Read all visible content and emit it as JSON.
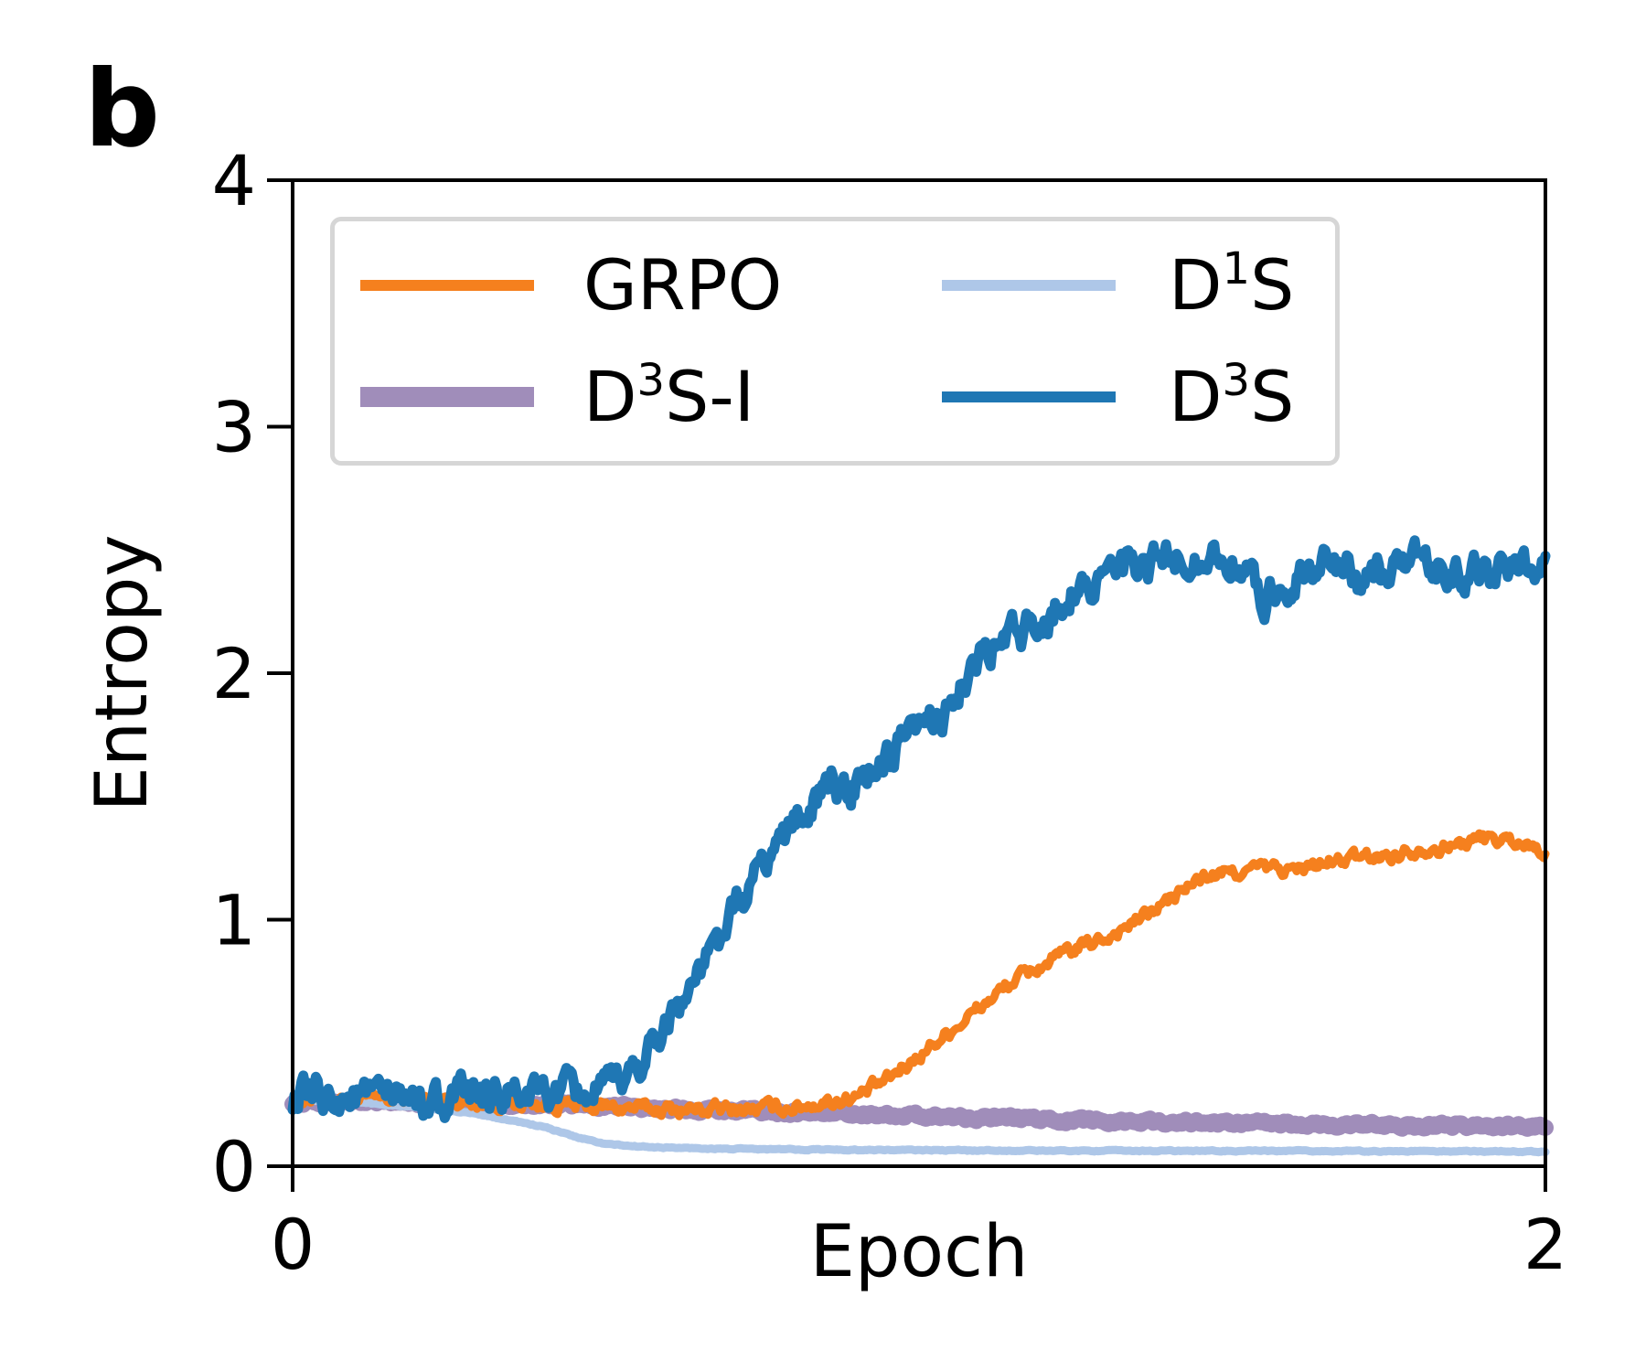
{
  "panel_label": "b",
  "chart_data": {
    "type": "line",
    "xlabel": "Epoch",
    "ylabel": "Entropy",
    "xlim": [
      0,
      2
    ],
    "ylim": [
      0,
      4
    ],
    "xticks": [
      "0",
      "2"
    ],
    "yticks": [
      "0",
      "1",
      "2",
      "3",
      "4"
    ],
    "legend_position": "upper-left, 2 columns",
    "series": [
      {
        "name": "GRPO",
        "label_base": "GRPO",
        "label_sup": "",
        "label_tail": "",
        "color": "#f5801e",
        "noise": 0.022,
        "x": [
          0,
          0.1,
          0.2,
          0.3,
          0.4,
          0.5,
          0.6,
          0.7,
          0.8,
          0.9,
          0.95,
          1.0,
          1.05,
          1.1,
          1.15,
          1.2,
          1.25,
          1.3,
          1.35,
          1.4,
          1.45,
          1.5,
          1.55,
          1.6,
          1.65,
          1.7,
          1.75,
          1.8,
          1.85,
          1.9,
          1.95,
          2.0
        ],
        "y": [
          0.28,
          0.27,
          0.27,
          0.26,
          0.25,
          0.24,
          0.23,
          0.23,
          0.24,
          0.28,
          0.35,
          0.45,
          0.55,
          0.65,
          0.75,
          0.82,
          0.88,
          0.93,
          1.0,
          1.08,
          1.17,
          1.19,
          1.21,
          1.2,
          1.23,
          1.25,
          1.26,
          1.29,
          1.3,
          1.33,
          1.32,
          1.28
        ]
      },
      {
        "name": "D3S-I",
        "label_base": "D",
        "label_sup": "3",
        "label_tail": "S-I",
        "color": "#a08dba",
        "noise": 0.008,
        "x": [
          0,
          0.2,
          0.4,
          0.6,
          0.8,
          1.0,
          1.2,
          1.4,
          1.6,
          1.8,
          2.0
        ],
        "y": [
          0.26,
          0.26,
          0.25,
          0.235,
          0.22,
          0.205,
          0.19,
          0.18,
          0.17,
          0.165,
          0.16
        ]
      },
      {
        "name": "D1S",
        "label_base": "D",
        "label_sup": "1",
        "label_tail": "S",
        "color": "#aec7e8",
        "noise": 0.002,
        "x": [
          0,
          0.1,
          0.2,
          0.3,
          0.4,
          0.45,
          0.5,
          0.55,
          0.6,
          0.7,
          0.8,
          1.0,
          1.2,
          1.5,
          2.0
        ],
        "y": [
          0.27,
          0.26,
          0.24,
          0.21,
          0.16,
          0.12,
          0.09,
          0.08,
          0.075,
          0.07,
          0.068,
          0.065,
          0.063,
          0.062,
          0.06
        ]
      },
      {
        "name": "D3S",
        "label_base": "D",
        "label_sup": "3",
        "label_tail": "S",
        "color": "#1f77b4",
        "noise": 0.055,
        "x": [
          0,
          0.1,
          0.2,
          0.3,
          0.4,
          0.5,
          0.55,
          0.6,
          0.65,
          0.7,
          0.75,
          0.8,
          0.85,
          0.9,
          0.95,
          1.0,
          1.05,
          1.1,
          1.15,
          1.2,
          1.25,
          1.3,
          1.35,
          1.4,
          1.45,
          1.5,
          1.55,
          1.6,
          1.65,
          1.7,
          1.75,
          1.8,
          1.85,
          1.9,
          1.95,
          2.0
        ],
        "y": [
          0.28,
          0.28,
          0.27,
          0.28,
          0.29,
          0.3,
          0.4,
          0.6,
          0.78,
          1.0,
          1.22,
          1.4,
          1.52,
          1.55,
          1.65,
          1.75,
          1.88,
          2.05,
          2.15,
          2.22,
          2.35,
          2.4,
          2.42,
          2.45,
          2.48,
          2.45,
          2.3,
          2.4,
          2.45,
          2.38,
          2.42,
          2.45,
          2.4,
          2.42,
          2.45,
          2.45
        ]
      }
    ]
  }
}
